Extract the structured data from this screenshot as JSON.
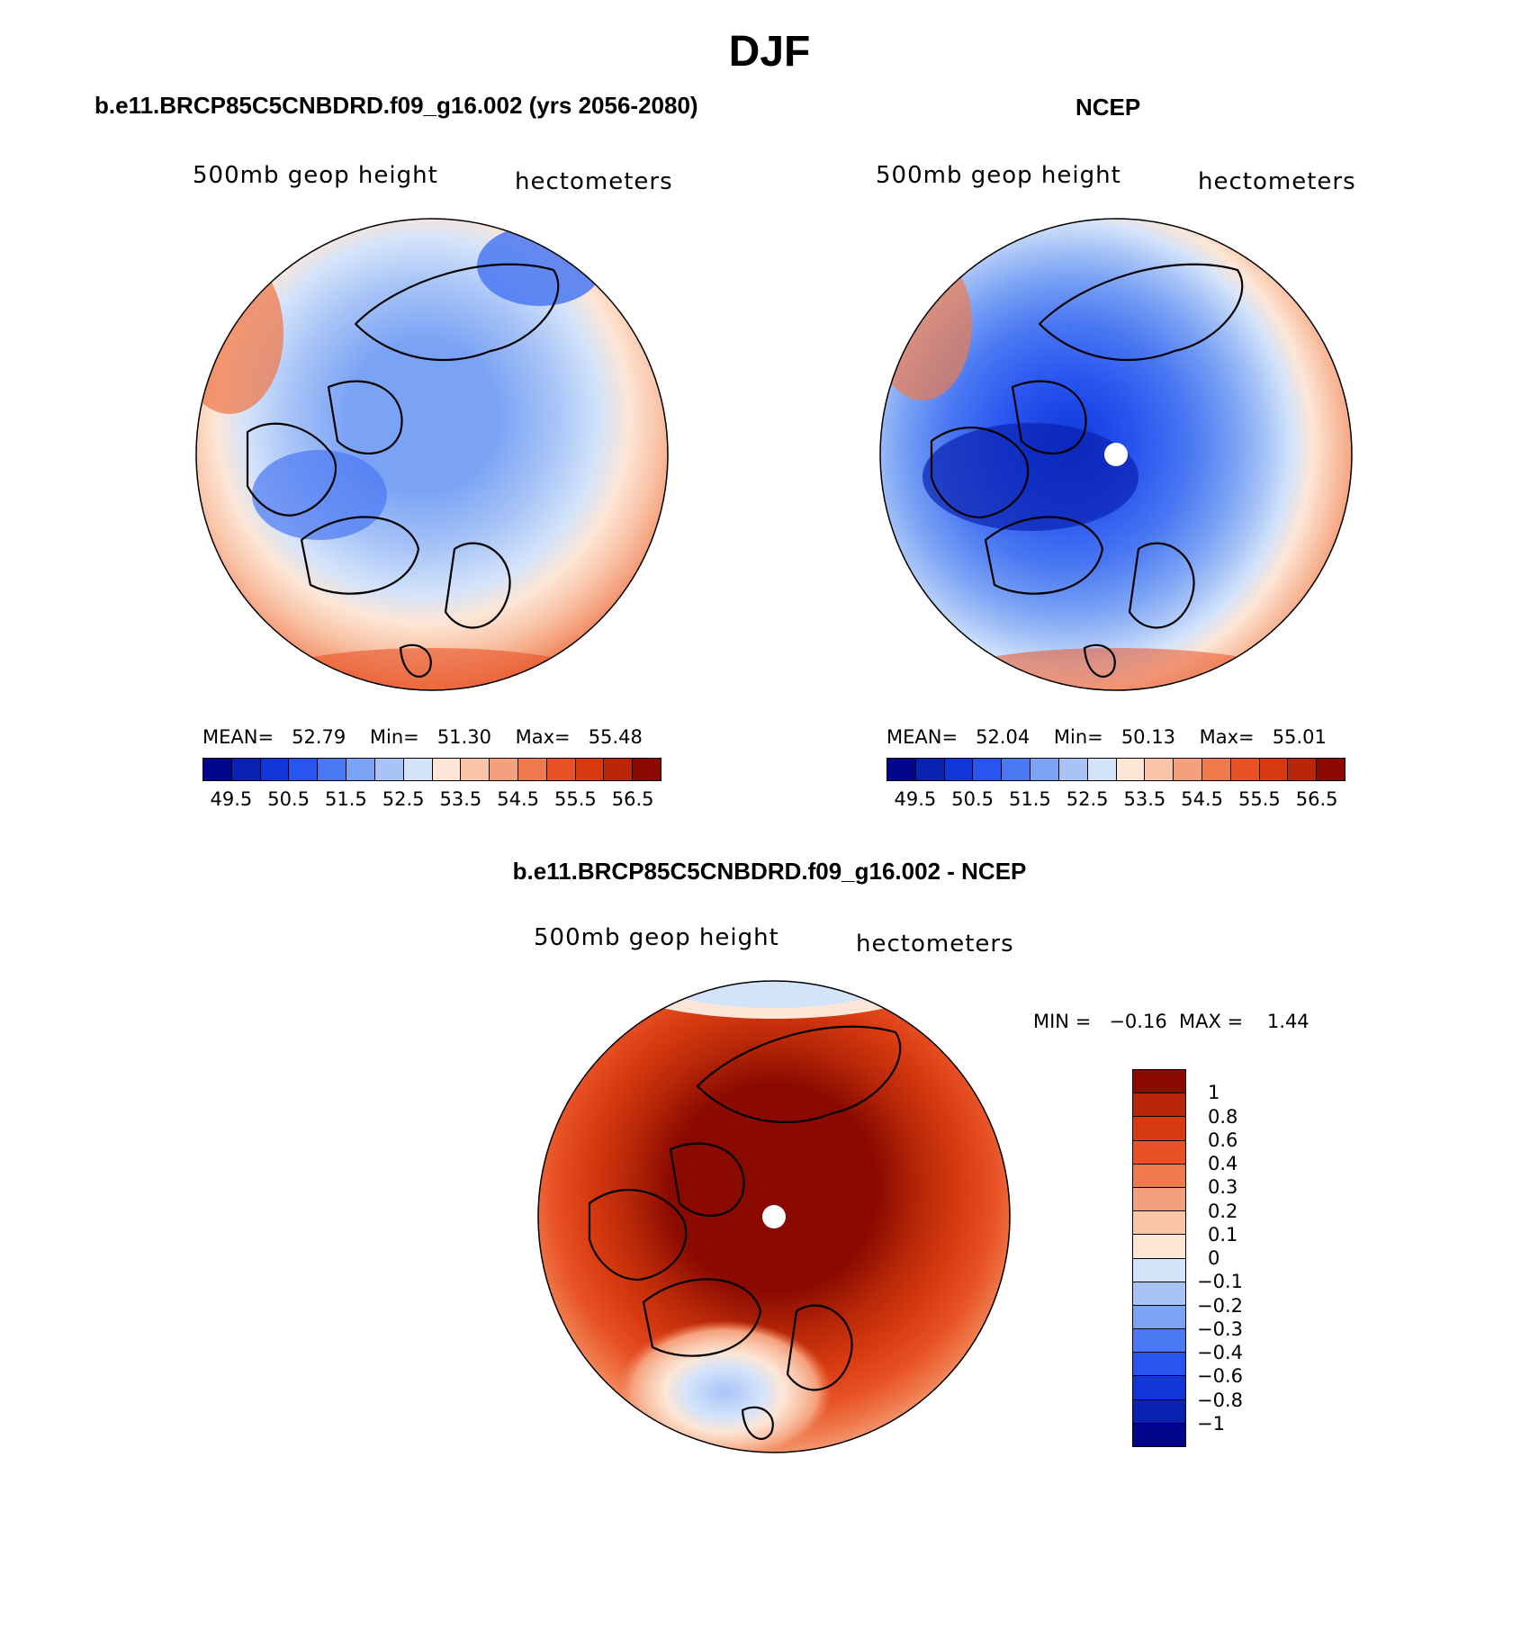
{
  "figure_title": "DJF",
  "panels": {
    "model": {
      "title": "b.e11.BRCP85C5CNBDRD.f09_g16.002 (yrs 2056-2080)",
      "variable": "500mb geop height",
      "units": "hectometers",
      "mean_label": "MEAN=",
      "mean": "52.79",
      "min_label": "Min=",
      "min": "51.30",
      "max_label": "Max=",
      "max": "55.48"
    },
    "obs": {
      "title": "NCEP",
      "variable": "500mb geop height",
      "units": "hectometers",
      "mean_label": "MEAN=",
      "mean": "52.04",
      "min_label": "Min=",
      "min": "50.13",
      "max_label": "Max=",
      "max": "55.01"
    },
    "diff": {
      "title": "b.e11.BRCP85C5CNBDRD.f09_g16.002 - NCEP",
      "variable": "500mb geop height",
      "units": "hectometers",
      "min_label": "MIN =",
      "min": "−0.16",
      "max_label": "MAX =",
      "max": "1.44"
    }
  },
  "colorbars": {
    "abs": {
      "tick_labels": [
        "49.5",
        "50.5",
        "51.5",
        "52.5",
        "53.5",
        "54.5",
        "55.5",
        "56.5"
      ],
      "colors": [
        "#00058c",
        "#0a22b0",
        "#1036d8",
        "#2855f0",
        "#4a78f2",
        "#7aa2f5",
        "#a8c4f7",
        "#d3e3fa",
        "#fde6d6",
        "#f9c4a8",
        "#f5a07c",
        "#ef7a4c",
        "#e85225",
        "#d83a10",
        "#b82808",
        "#8a0a00"
      ]
    },
    "diff": {
      "tick_labels": [
        "1",
        "0.8",
        "0.6",
        "0.4",
        "0.3",
        "0.2",
        "0.1",
        "0",
        "−0.1",
        "−0.2",
        "−0.3",
        "−0.4",
        "−0.6",
        "−0.8",
        "−1"
      ],
      "colors": [
        "#8a0a00",
        "#b82808",
        "#d83a10",
        "#e85225",
        "#ef7a4c",
        "#f5a07c",
        "#f9c4a8",
        "#fde6d6",
        "#d3e3fa",
        "#a8c4f7",
        "#7aa2f5",
        "#4a78f2",
        "#2855f0",
        "#1036d8",
        "#0a22b0",
        "#00058c"
      ]
    }
  }
}
